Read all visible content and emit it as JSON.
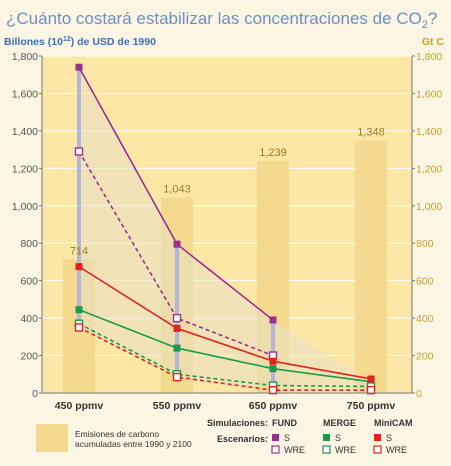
{
  "chart_data": {
    "type": "line",
    "title": "¿Cuánto costará estabilizar las concentraciones de CO",
    "title_sub": "2",
    "title_end": "?",
    "ylabel_left": "Billones (10",
    "ylabel_left_sup": "12",
    "ylabel_left_end": ") de USD de 1990",
    "ylabel_right": "Gt C",
    "categories": [
      "450 ppmv",
      "550 ppmv",
      "650 ppmv",
      "750 ppmv"
    ],
    "ylim": [
      0,
      1800
    ],
    "yticks": [
      "0",
      "200",
      "400",
      "600",
      "800",
      "1,000",
      "1,200",
      "1,400",
      "1,600",
      "1,800"
    ],
    "yticks_values": [
      0,
      200,
      400,
      600,
      800,
      1000,
      1200,
      1400,
      1600,
      1800
    ],
    "bars": {
      "label": "Emisiones de carbono acumuladas entre 1990 y 2100",
      "values": [
        714,
        1043,
        1239,
        1348
      ],
      "labels": [
        "714",
        "1,043",
        "1,239",
        "1,348"
      ]
    },
    "series": [
      {
        "name": "FUND S",
        "model": "FUND",
        "scenario": "S",
        "color": "#9b2f8f",
        "dash": false,
        "values": [
          1740,
          795,
          390,
          null
        ]
      },
      {
        "name": "FUND WRE",
        "model": "FUND",
        "scenario": "WRE",
        "color": "#9b2f8f",
        "dash": true,
        "values": [
          1290,
          400,
          200,
          null
        ]
      },
      {
        "name": "MERGE S",
        "model": "MERGE",
        "scenario": "S",
        "color": "#1a9a48",
        "dash": false,
        "values": [
          445,
          240,
          130,
          60
        ]
      },
      {
        "name": "MERGE WRE",
        "model": "MERGE",
        "scenario": "WRE",
        "color": "#1a9a48",
        "dash": true,
        "values": [
          370,
          100,
          40,
          35
        ]
      },
      {
        "name": "MiniCAM S",
        "model": "MiniCAM",
        "scenario": "S",
        "color": "#e0241c",
        "dash": false,
        "values": [
          675,
          345,
          170,
          75
        ]
      },
      {
        "name": "MiniCAM WRE",
        "model": "MiniCAM",
        "scenario": "WRE",
        "color": "#e0241c",
        "dash": true,
        "values": [
          350,
          85,
          15,
          15
        ]
      }
    ]
  },
  "legend": {
    "simulaciones_label": "Simulaciones:",
    "escenarios_label": "Escenarios:",
    "models": [
      "FUND",
      "MERGE",
      "MiniCAM"
    ],
    "s_label": "S",
    "wre_label": "WRE",
    "bar_text_line1": "Emisiones de carbono",
    "bar_text_line2": "acumuladas entre 1990 y 2100"
  },
  "colors": {
    "plot_bg": "#fce7a6",
    "bar": "#f5d98e",
    "title": "#6f8fc2",
    "axis_label": "#3d6fb6",
    "right_axis_label": "#c9a12b",
    "grid": "#ffffff",
    "range_bar": "#b4b4d8",
    "bar_label": "#a07a20"
  }
}
